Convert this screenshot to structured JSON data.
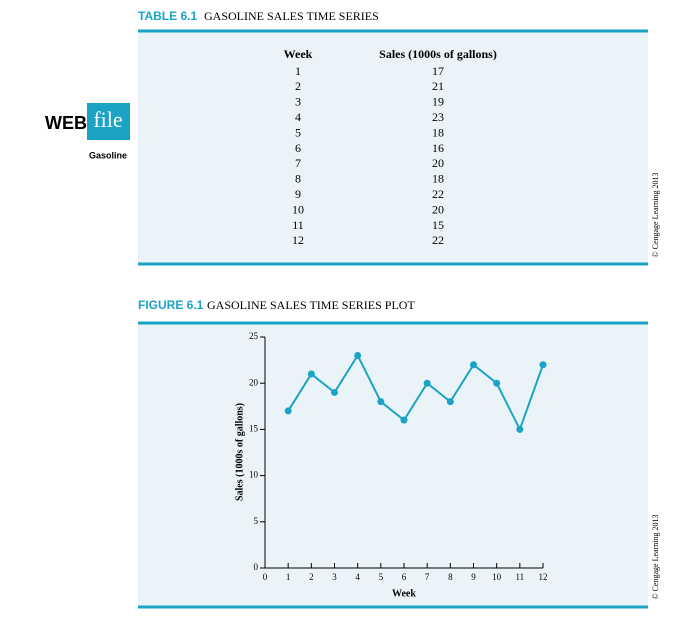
{
  "sidebar": {
    "web": "WEB",
    "file": "file",
    "name": "Gasoline"
  },
  "table": {
    "label": "TABLE 6.1",
    "title": "GASOLINE SALES TIME SERIES",
    "header": [
      "Week",
      "Sales (1000s of gallons)"
    ],
    "rows": [
      [
        1,
        17
      ],
      [
        2,
        21
      ],
      [
        3,
        19
      ],
      [
        4,
        23
      ],
      [
        5,
        18
      ],
      [
        6,
        16
      ],
      [
        7,
        20
      ],
      [
        8,
        18
      ],
      [
        9,
        22
      ],
      [
        10,
        20
      ],
      [
        11,
        15
      ],
      [
        12,
        22
      ]
    ]
  },
  "copyright": [
    "© Cengage Learning 2013",
    "© Cengage Learning 2013"
  ],
  "chart_data": {
    "type": "line",
    "label": "FIGURE 6.1",
    "title": "GASOLINE SALES TIME SERIES PLOT",
    "x_label": "Week",
    "y_label": "Sales (1000s of gallons)",
    "x": [
      1,
      2,
      3,
      4,
      5,
      6,
      7,
      8,
      9,
      10,
      11,
      12
    ],
    "values": [
      17,
      21,
      19,
      23,
      18,
      16,
      20,
      18,
      22,
      20,
      15,
      22
    ],
    "color": "#1ba3c6",
    "xlim": [
      0,
      12
    ],
    "xticks": [
      0,
      1,
      2,
      3,
      4,
      5,
      6,
      7,
      8,
      9,
      10,
      11,
      12
    ],
    "ylim": [
      0,
      25
    ],
    "yticks": [
      0,
      5,
      10,
      15,
      20,
      25
    ]
  }
}
